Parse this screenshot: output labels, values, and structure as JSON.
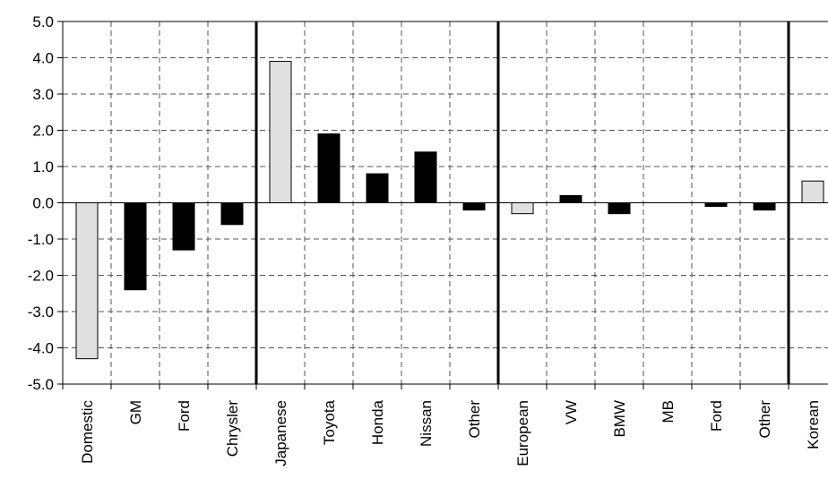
{
  "chart_data": {
    "type": "bar",
    "title": "",
    "xlabel": "",
    "ylabel": "",
    "ylim": [
      -5.0,
      5.0
    ],
    "yticks": [
      "5.0",
      "4.0",
      "3.0",
      "2.0",
      "1.0",
      "0.0",
      "-1.0",
      "-2.0",
      "-3.0",
      "-4.0",
      "-5.0"
    ],
    "grid": true,
    "categories": [
      "Domestic",
      "GM",
      "Ford",
      "Chrysler",
      "Japanese",
      "Toyota",
      "Honda",
      "Nissan",
      "Other",
      "European",
      "VW",
      "BMW",
      "MB",
      "Ford",
      "Other",
      "Korean"
    ],
    "values": [
      -4.3,
      -2.4,
      -1.3,
      -0.6,
      3.9,
      1.9,
      0.8,
      1.4,
      -0.2,
      -0.3,
      0.2,
      -0.3,
      0.0,
      -0.1,
      -0.2,
      0.6
    ],
    "bar_kind": [
      "group",
      "make",
      "make",
      "make",
      "group",
      "make",
      "make",
      "make",
      "make",
      "group",
      "make",
      "make",
      "make",
      "make",
      "make",
      "group"
    ],
    "colors": {
      "group": "#e0e0e0",
      "make": "#000000",
      "axis": "#000000",
      "grid": "#555555"
    },
    "group_separators_after": [
      3,
      8,
      14
    ]
  }
}
